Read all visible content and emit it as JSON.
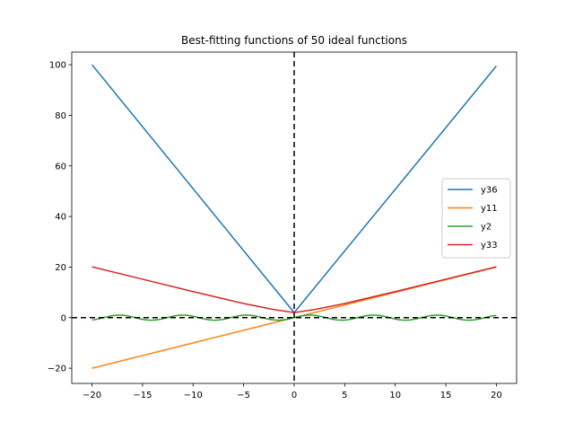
{
  "chart_data": {
    "type": "line",
    "title": "Best-fitting functions of 50 ideal functions",
    "xlabel": "",
    "ylabel": "",
    "xlim": [
      -22,
      22
    ],
    "ylim": [
      -26,
      105
    ],
    "xticks": [
      -20,
      -15,
      -10,
      -5,
      0,
      5,
      10,
      15,
      20
    ],
    "xtick_labels": [
      "−20",
      "−15",
      "−10",
      "−5",
      "0",
      "5",
      "10",
      "15",
      "20"
    ],
    "yticks": [
      -20,
      0,
      20,
      40,
      60,
      80,
      100
    ],
    "ytick_labels": [
      "−20",
      "0",
      "20",
      "40",
      "60",
      "80",
      "100"
    ],
    "grid": false,
    "legend_position": "center-right",
    "reference_lines": [
      {
        "orientation": "horizontal",
        "value": 0,
        "style": "dashed",
        "color": "#000000"
      },
      {
        "orientation": "vertical",
        "value": 0,
        "style": "dashed",
        "color": "#000000"
      }
    ],
    "series": [
      {
        "name": "y36",
        "color": "#1f77b4",
        "x": [
          -20,
          0,
          20
        ],
        "y": [
          100,
          2,
          99.5
        ]
      },
      {
        "name": "y11",
        "color": "#ff7f0e",
        "x": [
          -20,
          20
        ],
        "y": [
          -20,
          20
        ]
      },
      {
        "name": "y2",
        "color": "#2ca02c",
        "x_range": [
          -20,
          20
        ],
        "amplitude": 1,
        "period": 6.283
      },
      {
        "name": "y33",
        "color": "#d62728",
        "x": [
          -20,
          -15,
          -10,
          -5,
          -2,
          0,
          2,
          5,
          10,
          15,
          20
        ],
        "y": [
          20.1,
          15.2,
          10.3,
          5.6,
          3.2,
          2.0,
          3.2,
          5.6,
          10.3,
          15.2,
          20.1
        ]
      }
    ]
  }
}
